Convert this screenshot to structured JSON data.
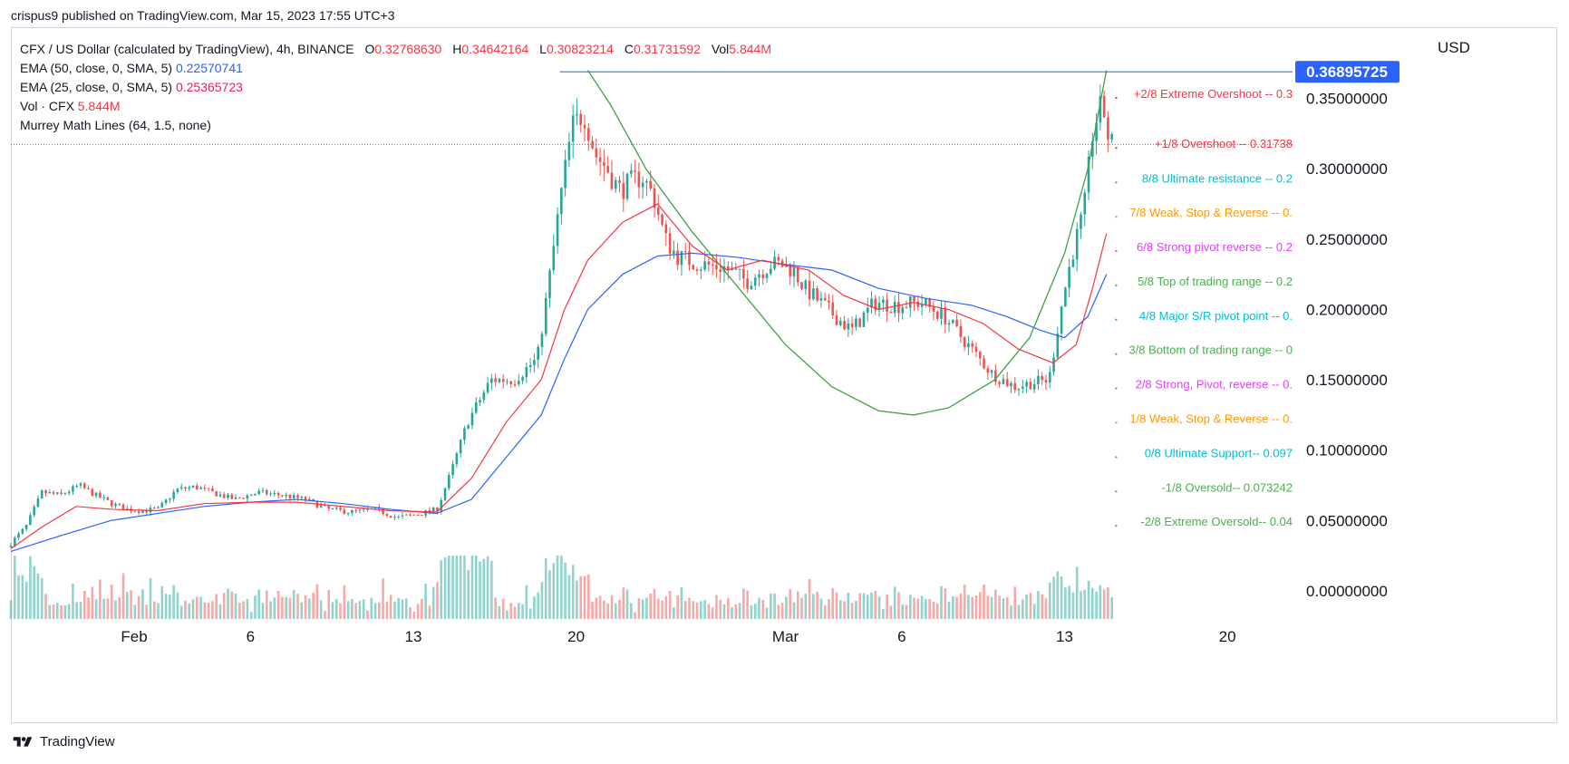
{
  "header": {
    "publisher_line": "crispus9 published on TradingView.com, Mar 15, 2023 17:55 UTC+3"
  },
  "legend": {
    "title": "CFX / US Dollar (calculated by TradingView), 4h, BINANCE",
    "o_label": "O",
    "o_value": "0.32768630",
    "h_label": "H",
    "h_value": "0.34642164",
    "l_label": "L",
    "l_value": "0.30823214",
    "c_label": "C",
    "c_value": "0.31731592",
    "vol_label": "Vol",
    "vol_value": "5.844M",
    "ema50_label": "EMA (50, close, 0, SMA, 5)",
    "ema50_value": "0.22570741",
    "ema25_label": "EMA (25, close, 0, SMA, 5)",
    "ema25_value": "0.25365723",
    "volume_label": "Vol · CFX",
    "volume_value": "5.844M",
    "murrey_label": "Murrey Math Lines (64, 1.5, none)"
  },
  "currency": "USD",
  "footer": {
    "brand": "TradingView"
  },
  "colors": {
    "up": "#26a69a",
    "down": "#ef5350",
    "ema50": "#2962ff",
    "ema25": "#f23645",
    "cup": "#43a047",
    "resistance": "#2962ff",
    "price_line": "#f23645"
  },
  "chart_data": {
    "type": "candlestick",
    "symbol": "CFX / US Dollar",
    "interval": "4h",
    "exchange": "BINANCE",
    "ylim": [
      -0.02,
      0.4
    ],
    "y_ticks": [
      "0.35000000",
      "0.30000000",
      "0.25000000",
      "0.20000000",
      "0.15000000",
      "0.10000000",
      "0.05000000",
      "0.00000000"
    ],
    "y_tick_values": [
      0.35,
      0.3,
      0.25,
      0.2,
      0.15,
      0.1,
      0.05,
      0.0
    ],
    "x_ticks": [
      {
        "label": "Feb",
        "day": 32
      },
      {
        "label": "6",
        "day": 37
      },
      {
        "label": "13",
        "day": 44
      },
      {
        "label": "20",
        "day": 51
      },
      {
        "label": "Mar",
        "day": 60
      },
      {
        "label": "6",
        "day": 65
      },
      {
        "label": "13",
        "day": 72
      },
      {
        "label": "20",
        "day": 79
      }
    ],
    "x_range_days": [
      26.7,
      81.8
    ],
    "price_tag": "0.36895725",
    "price_tag_value": 0.36895725,
    "current_close": 0.3173,
    "resistance_line": {
      "value": 0.36895725,
      "from_day": 50.3
    },
    "cup_curve": [
      [
        51.5,
        0.37
      ],
      [
        52.5,
        0.345
      ],
      [
        54,
        0.3
      ],
      [
        56,
        0.255
      ],
      [
        58,
        0.215
      ],
      [
        60,
        0.175
      ],
      [
        62,
        0.145
      ],
      [
        64,
        0.128
      ],
      [
        65.5,
        0.125
      ],
      [
        67,
        0.13
      ],
      [
        69,
        0.15
      ],
      [
        70.5,
        0.18
      ],
      [
        72,
        0.24
      ],
      [
        73,
        0.3
      ],
      [
        73.8,
        0.37
      ]
    ],
    "ema50_points": [
      [
        26.7,
        0.028
      ],
      [
        29,
        0.04
      ],
      [
        31,
        0.05
      ],
      [
        33,
        0.055
      ],
      [
        35,
        0.06
      ],
      [
        37,
        0.063
      ],
      [
        39,
        0.065
      ],
      [
        41,
        0.062
      ],
      [
        43,
        0.058
      ],
      [
        45,
        0.055
      ],
      [
        46.5,
        0.065
      ],
      [
        48,
        0.095
      ],
      [
        49.5,
        0.125
      ],
      [
        50.5,
        0.165
      ],
      [
        51.5,
        0.2
      ],
      [
        53,
        0.225
      ],
      [
        54.5,
        0.238
      ],
      [
        56,
        0.24
      ],
      [
        58,
        0.237
      ],
      [
        60,
        0.232
      ],
      [
        62,
        0.228
      ],
      [
        64,
        0.215
      ],
      [
        66,
        0.208
      ],
      [
        68,
        0.203
      ],
      [
        69.5,
        0.195
      ],
      [
        71,
        0.185
      ],
      [
        72,
        0.18
      ],
      [
        73,
        0.195
      ],
      [
        73.8,
        0.225
      ]
    ],
    "ema25_points": [
      [
        26.7,
        0.03
      ],
      [
        28,
        0.045
      ],
      [
        29.5,
        0.06
      ],
      [
        31,
        0.058
      ],
      [
        33,
        0.057
      ],
      [
        35,
        0.062
      ],
      [
        37,
        0.063
      ],
      [
        39,
        0.063
      ],
      [
        41,
        0.06
      ],
      [
        43,
        0.057
      ],
      [
        45,
        0.056
      ],
      [
        46.5,
        0.08
      ],
      [
        48,
        0.12
      ],
      [
        49.5,
        0.15
      ],
      [
        50.5,
        0.2
      ],
      [
        51.5,
        0.235
      ],
      [
        53,
        0.262
      ],
      [
        54.5,
        0.275
      ],
      [
        56,
        0.245
      ],
      [
        57.5,
        0.228
      ],
      [
        59,
        0.235
      ],
      [
        61,
        0.228
      ],
      [
        62.5,
        0.21
      ],
      [
        64,
        0.2
      ],
      [
        65.5,
        0.205
      ],
      [
        67,
        0.2
      ],
      [
        68.5,
        0.19
      ],
      [
        70,
        0.172
      ],
      [
        71.5,
        0.162
      ],
      [
        72.5,
        0.175
      ],
      [
        73.2,
        0.215
      ],
      [
        73.8,
        0.254
      ]
    ],
    "price_path": [
      [
        26.7,
        0.031
      ],
      [
        27.5,
        0.045
      ],
      [
        28.2,
        0.07
      ],
      [
        29,
        0.068
      ],
      [
        29.8,
        0.075
      ],
      [
        30.5,
        0.068
      ],
      [
        31.2,
        0.062
      ],
      [
        31.8,
        0.058
      ],
      [
        32.5,
        0.057
      ],
      [
        33.2,
        0.058
      ],
      [
        34,
        0.072
      ],
      [
        34.8,
        0.074
      ],
      [
        35.5,
        0.07
      ],
      [
        36.5,
        0.065
      ],
      [
        37.5,
        0.07
      ],
      [
        38.5,
        0.068
      ],
      [
        39.5,
        0.065
      ],
      [
        40.5,
        0.058
      ],
      [
        41.5,
        0.056
      ],
      [
        42.5,
        0.058
      ],
      [
        43.5,
        0.052
      ],
      [
        44.5,
        0.055
      ],
      [
        45.2,
        0.058
      ],
      [
        45.8,
        0.085
      ],
      [
        46.5,
        0.12
      ],
      [
        47.5,
        0.15
      ],
      [
        48.5,
        0.15
      ],
      [
        49.5,
        0.165
      ],
      [
        50,
        0.22
      ],
      [
        50.5,
        0.28
      ],
      [
        51,
        0.33
      ],
      [
        51.5,
        0.34
      ],
      [
        52,
        0.31
      ],
      [
        52.5,
        0.3
      ],
      [
        53,
        0.285
      ],
      [
        53.5,
        0.29
      ],
      [
        54,
        0.295
      ],
      [
        54.5,
        0.28
      ],
      [
        55,
        0.25
      ],
      [
        55.5,
        0.238
      ],
      [
        56.5,
        0.232
      ],
      [
        57.5,
        0.23
      ],
      [
        58.5,
        0.22
      ],
      [
        59.5,
        0.232
      ],
      [
        60,
        0.232
      ],
      [
        60.5,
        0.228
      ],
      [
        61,
        0.215
      ],
      [
        62,
        0.2
      ],
      [
        63,
        0.185
      ],
      [
        64,
        0.205
      ],
      [
        65,
        0.203
      ],
      [
        66,
        0.205
      ],
      [
        67,
        0.195
      ],
      [
        68,
        0.175
      ],
      [
        69,
        0.155
      ],
      [
        70,
        0.145
      ],
      [
        70.8,
        0.148
      ],
      [
        71.5,
        0.15
      ],
      [
        72,
        0.2
      ],
      [
        72.5,
        0.24
      ],
      [
        73,
        0.27
      ],
      [
        73.4,
        0.33
      ],
      [
        73.8,
        0.346
      ],
      [
        74.1,
        0.3173
      ]
    ],
    "volume": {
      "max_value_m": 48
    },
    "murrey_lines": [
      {
        "label": "+2/8 Extreme Overshoot --  0.3",
        "color": "#f23645",
        "value": 0.353
      },
      {
        "label": "+1/8 Overshoot --  0.31738",
        "color": "#f23645",
        "value": 0.3174
      },
      {
        "label": "8/8 Ultimate resistance --  0.2",
        "color": "#00bcd4",
        "value": 0.2929
      },
      {
        "label": "7/8 Weak, Stop & Reverse --  0.",
        "color": "#ff9800",
        "value": 0.2685
      },
      {
        "label": "6/8 Strong pivot reverse --  0.2",
        "color": "#e040fb",
        "value": 0.2441
      },
      {
        "label": "5/8 Top of trading range --  0.2",
        "color": "#4caf50",
        "value": 0.2197
      },
      {
        "label": "4/8 Major S/R pivot point --  0.",
        "color": "#00bcd4",
        "value": 0.1953
      },
      {
        "label": "3/8 Bottom of trading range --  0",
        "color": "#4caf50",
        "value": 0.1709
      },
      {
        "label": "2/8 Strong, Pivot, reverse --  0.",
        "color": "#e040fb",
        "value": 0.1465
      },
      {
        "label": "1/8 Weak, Stop & Reverse --  0.",
        "color": "#ff9800",
        "value": 0.1221
      },
      {
        "label": "0/8 Ultimate Support--  0.097",
        "color": "#00bcd4",
        "value": 0.0976
      },
      {
        "label": "-1/8 Oversold--  0.073242",
        "color": "#4caf50",
        "value": 0.0732
      },
      {
        "label": "-2/8 Extreme Oversold--  0.04",
        "color": "#4caf50",
        "value": 0.0488
      }
    ]
  }
}
